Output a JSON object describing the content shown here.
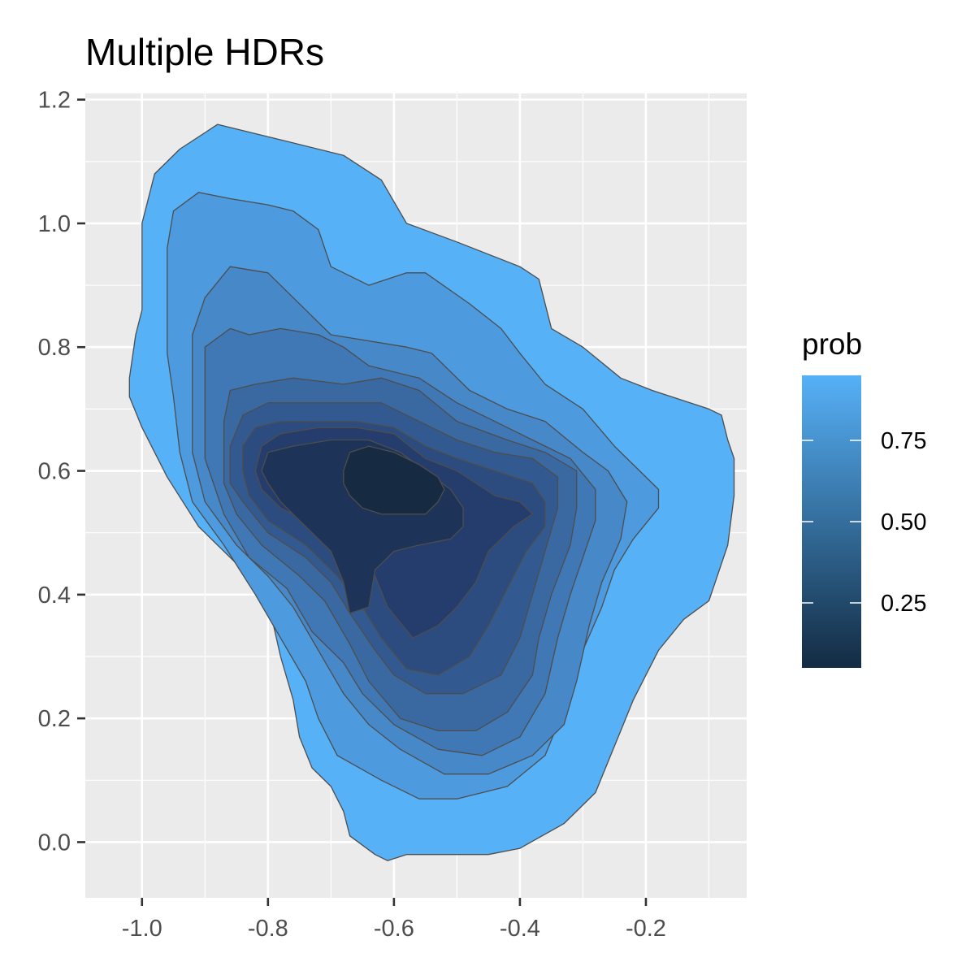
{
  "chart_data": {
    "type": "contour",
    "title": "Multiple HDRs",
    "xlabel": "",
    "ylabel": "",
    "xlim": [
      -1.09,
      -0.04
    ],
    "ylim": [
      -0.09,
      1.21
    ],
    "grid": true,
    "x_ticks": [
      -1.0,
      -0.8,
      -0.6,
      -0.4,
      -0.2
    ],
    "x_tick_labels": [
      "-1.0",
      "-0.8",
      "-0.6",
      "-0.4",
      "-0.2"
    ],
    "y_ticks": [
      0.0,
      0.2,
      0.4,
      0.6,
      0.8,
      1.0,
      1.2
    ],
    "y_tick_labels": [
      "0.0",
      "0.2",
      "0.4",
      "0.6",
      "0.8",
      "1.0",
      "1.2"
    ],
    "density_mode": {
      "x": -0.6,
      "y": 0.58
    },
    "legend": {
      "title": "prob",
      "placement": "right",
      "range": [
        0.05,
        0.95
      ],
      "color_low": "#132B43",
      "color_high": "#56B1F7",
      "breaks": [
        0.25,
        0.5,
        0.75
      ],
      "break_labels": [
        "0.25",
        "0.50",
        "0.75"
      ]
    },
    "series": [
      {
        "prob": 0.95,
        "color": "#56B1F7",
        "points": [
          [
            -1.02,
            0.75
          ],
          [
            -1.01,
            0.82
          ],
          [
            -1.0,
            0.86
          ],
          [
            -1.0,
            1.0
          ],
          [
            -0.98,
            1.08
          ],
          [
            -0.94,
            1.12
          ],
          [
            -0.88,
            1.16
          ],
          [
            -0.76,
            1.13
          ],
          [
            -0.68,
            1.11
          ],
          [
            -0.62,
            1.07
          ],
          [
            -0.58,
            1.0
          ],
          [
            -0.5,
            0.97
          ],
          [
            -0.4,
            0.93
          ],
          [
            -0.37,
            0.91
          ],
          [
            -0.35,
            0.83
          ],
          [
            -0.3,
            0.8
          ],
          [
            -0.24,
            0.75
          ],
          [
            -0.19,
            0.73
          ],
          [
            -0.1,
            0.7
          ],
          [
            -0.08,
            0.69
          ],
          [
            -0.07,
            0.65
          ],
          [
            -0.06,
            0.62
          ],
          [
            -0.06,
            0.56
          ],
          [
            -0.07,
            0.48
          ],
          [
            -0.1,
            0.39
          ],
          [
            -0.14,
            0.36
          ],
          [
            -0.18,
            0.31
          ],
          [
            -0.2,
            0.27
          ],
          [
            -0.22,
            0.23
          ],
          [
            -0.24,
            0.18
          ],
          [
            -0.26,
            0.13
          ],
          [
            -0.28,
            0.08
          ],
          [
            -0.33,
            0.03
          ],
          [
            -0.4,
            -0.01
          ],
          [
            -0.45,
            -0.02
          ],
          [
            -0.5,
            -0.02
          ],
          [
            -0.58,
            -0.02
          ],
          [
            -0.61,
            -0.03
          ],
          [
            -0.63,
            -0.02
          ],
          [
            -0.67,
            0.01
          ],
          [
            -0.68,
            0.05
          ],
          [
            -0.7,
            0.09
          ],
          [
            -0.73,
            0.12
          ],
          [
            -0.75,
            0.17
          ],
          [
            -0.76,
            0.23
          ],
          [
            -0.78,
            0.3
          ],
          [
            -0.8,
            0.39
          ],
          [
            -0.85,
            0.45
          ],
          [
            -0.91,
            0.51
          ],
          [
            -0.96,
            0.59
          ],
          [
            -1.0,
            0.67
          ],
          [
            -1.02,
            0.72
          ]
        ]
      },
      {
        "prob": 0.85,
        "color": "#4D9ADF",
        "points": [
          [
            -0.96,
            0.79
          ],
          [
            -0.96,
            0.96
          ],
          [
            -0.95,
            1.02
          ],
          [
            -0.91,
            1.05
          ],
          [
            -0.86,
            1.04
          ],
          [
            -0.8,
            1.03
          ],
          [
            -0.76,
            1.02
          ],
          [
            -0.72,
            0.99
          ],
          [
            -0.7,
            0.93
          ],
          [
            -0.64,
            0.9
          ],
          [
            -0.58,
            0.92
          ],
          [
            -0.55,
            0.92
          ],
          [
            -0.48,
            0.87
          ],
          [
            -0.43,
            0.83
          ],
          [
            -0.4,
            0.79
          ],
          [
            -0.36,
            0.74
          ],
          [
            -0.3,
            0.7
          ],
          [
            -0.25,
            0.64
          ],
          [
            -0.21,
            0.6
          ],
          [
            -0.18,
            0.57
          ],
          [
            -0.18,
            0.54
          ],
          [
            -0.22,
            0.49
          ],
          [
            -0.25,
            0.44
          ],
          [
            -0.27,
            0.38
          ],
          [
            -0.3,
            0.31
          ],
          [
            -0.32,
            0.24
          ],
          [
            -0.36,
            0.14
          ],
          [
            -0.42,
            0.09
          ],
          [
            -0.5,
            0.07
          ],
          [
            -0.56,
            0.07
          ],
          [
            -0.62,
            0.1
          ],
          [
            -0.69,
            0.14
          ],
          [
            -0.72,
            0.2
          ],
          [
            -0.74,
            0.26
          ],
          [
            -0.78,
            0.33
          ],
          [
            -0.82,
            0.4
          ],
          [
            -0.87,
            0.48
          ],
          [
            -0.92,
            0.55
          ],
          [
            -0.94,
            0.63
          ],
          [
            -0.95,
            0.72
          ]
        ]
      },
      {
        "prob": 0.75,
        "color": "#4788C9",
        "points": [
          [
            -0.92,
            0.63
          ],
          [
            -0.92,
            0.82
          ],
          [
            -0.9,
            0.88
          ],
          [
            -0.86,
            0.93
          ],
          [
            -0.8,
            0.92
          ],
          [
            -0.76,
            0.88
          ],
          [
            -0.7,
            0.82
          ],
          [
            -0.58,
            0.8
          ],
          [
            -0.54,
            0.79
          ],
          [
            -0.48,
            0.73
          ],
          [
            -0.42,
            0.7
          ],
          [
            -0.36,
            0.68
          ],
          [
            -0.3,
            0.63
          ],
          [
            -0.26,
            0.6
          ],
          [
            -0.23,
            0.55
          ],
          [
            -0.24,
            0.49
          ],
          [
            -0.27,
            0.42
          ],
          [
            -0.29,
            0.35
          ],
          [
            -0.31,
            0.26
          ],
          [
            -0.33,
            0.19
          ],
          [
            -0.38,
            0.14
          ],
          [
            -0.45,
            0.11
          ],
          [
            -0.52,
            0.11
          ],
          [
            -0.59,
            0.15
          ],
          [
            -0.64,
            0.19
          ],
          [
            -0.68,
            0.24
          ],
          [
            -0.72,
            0.31
          ],
          [
            -0.76,
            0.38
          ],
          [
            -0.8,
            0.43
          ],
          [
            -0.85,
            0.48
          ],
          [
            -0.9,
            0.55
          ]
        ]
      },
      {
        "prob": 0.65,
        "color": "#4078B5",
        "points": [
          [
            -0.9,
            0.62
          ],
          [
            -0.9,
            0.8
          ],
          [
            -0.86,
            0.83
          ],
          [
            -0.83,
            0.82
          ],
          [
            -0.78,
            0.83
          ],
          [
            -0.72,
            0.82
          ],
          [
            -0.68,
            0.8
          ],
          [
            -0.64,
            0.77
          ],
          [
            -0.56,
            0.75
          ],
          [
            -0.5,
            0.71
          ],
          [
            -0.44,
            0.68
          ],
          [
            -0.38,
            0.65
          ],
          [
            -0.32,
            0.62
          ],
          [
            -0.28,
            0.57
          ],
          [
            -0.28,
            0.52
          ],
          [
            -0.3,
            0.46
          ],
          [
            -0.32,
            0.4
          ],
          [
            -0.34,
            0.33
          ],
          [
            -0.36,
            0.24
          ],
          [
            -0.4,
            0.17
          ],
          [
            -0.46,
            0.14
          ],
          [
            -0.53,
            0.15
          ],
          [
            -0.6,
            0.19
          ],
          [
            -0.65,
            0.24
          ],
          [
            -0.68,
            0.29
          ],
          [
            -0.73,
            0.34
          ],
          [
            -0.77,
            0.41
          ],
          [
            -0.83,
            0.46
          ],
          [
            -0.87,
            0.53
          ]
        ]
      },
      {
        "prob": 0.55,
        "color": "#3A69A2",
        "points": [
          [
            -0.87,
            0.58
          ],
          [
            -0.87,
            0.68
          ],
          [
            -0.86,
            0.73
          ],
          [
            -0.82,
            0.74
          ],
          [
            -0.76,
            0.75
          ],
          [
            -0.68,
            0.74
          ],
          [
            -0.62,
            0.75
          ],
          [
            -0.56,
            0.73
          ],
          [
            -0.5,
            0.68
          ],
          [
            -0.42,
            0.65
          ],
          [
            -0.36,
            0.63
          ],
          [
            -0.31,
            0.6
          ],
          [
            -0.31,
            0.54
          ],
          [
            -0.32,
            0.48
          ],
          [
            -0.35,
            0.4
          ],
          [
            -0.37,
            0.33
          ],
          [
            -0.38,
            0.27
          ],
          [
            -0.42,
            0.21
          ],
          [
            -0.47,
            0.18
          ],
          [
            -0.53,
            0.18
          ],
          [
            -0.59,
            0.2
          ],
          [
            -0.64,
            0.26
          ],
          [
            -0.67,
            0.32
          ],
          [
            -0.71,
            0.39
          ],
          [
            -0.75,
            0.43
          ],
          [
            -0.81,
            0.48
          ],
          [
            -0.85,
            0.53
          ]
        ]
      },
      {
        "prob": 0.45,
        "color": "#335A90",
        "points": [
          [
            -0.86,
            0.58
          ],
          [
            -0.86,
            0.64
          ],
          [
            -0.84,
            0.69
          ],
          [
            -0.8,
            0.71
          ],
          [
            -0.75,
            0.71
          ],
          [
            -0.7,
            0.71
          ],
          [
            -0.62,
            0.71
          ],
          [
            -0.56,
            0.68
          ],
          [
            -0.5,
            0.65
          ],
          [
            -0.44,
            0.63
          ],
          [
            -0.38,
            0.62
          ],
          [
            -0.34,
            0.59
          ],
          [
            -0.34,
            0.54
          ],
          [
            -0.36,
            0.47
          ],
          [
            -0.38,
            0.4
          ],
          [
            -0.4,
            0.33
          ],
          [
            -0.43,
            0.27
          ],
          [
            -0.49,
            0.24
          ],
          [
            -0.55,
            0.24
          ],
          [
            -0.6,
            0.27
          ],
          [
            -0.63,
            0.31
          ],
          [
            -0.67,
            0.37
          ],
          [
            -0.7,
            0.42
          ],
          [
            -0.74,
            0.46
          ],
          [
            -0.8,
            0.5
          ],
          [
            -0.84,
            0.55
          ]
        ]
      },
      {
        "prob": 0.35,
        "color": "#2C4B7E",
        "points": [
          [
            -0.84,
            0.6
          ],
          [
            -0.84,
            0.64
          ],
          [
            -0.82,
            0.67
          ],
          [
            -0.78,
            0.68
          ],
          [
            -0.72,
            0.68
          ],
          [
            -0.66,
            0.68
          ],
          [
            -0.6,
            0.67
          ],
          [
            -0.55,
            0.64
          ],
          [
            -0.5,
            0.62
          ],
          [
            -0.44,
            0.6
          ],
          [
            -0.38,
            0.58
          ],
          [
            -0.36,
            0.55
          ],
          [
            -0.36,
            0.51
          ],
          [
            -0.39,
            0.47
          ],
          [
            -0.42,
            0.41
          ],
          [
            -0.45,
            0.35
          ],
          [
            -0.48,
            0.3
          ],
          [
            -0.53,
            0.27
          ],
          [
            -0.58,
            0.28
          ],
          [
            -0.62,
            0.33
          ],
          [
            -0.65,
            0.38
          ],
          [
            -0.69,
            0.43
          ],
          [
            -0.74,
            0.48
          ],
          [
            -0.8,
            0.52
          ],
          [
            -0.83,
            0.56
          ]
        ]
      },
      {
        "prob": 0.25,
        "color": "#253D6C",
        "points": [
          [
            -0.82,
            0.6
          ],
          [
            -0.81,
            0.64
          ],
          [
            -0.78,
            0.66
          ],
          [
            -0.72,
            0.67
          ],
          [
            -0.66,
            0.67
          ],
          [
            -0.6,
            0.66
          ],
          [
            -0.55,
            0.62
          ],
          [
            -0.5,
            0.6
          ],
          [
            -0.44,
            0.56
          ],
          [
            -0.4,
            0.55
          ],
          [
            -0.38,
            0.53
          ],
          [
            -0.41,
            0.51
          ],
          [
            -0.45,
            0.47
          ],
          [
            -0.47,
            0.42
          ],
          [
            -0.5,
            0.38
          ],
          [
            -0.53,
            0.35
          ],
          [
            -0.57,
            0.33
          ],
          [
            -0.61,
            0.38
          ],
          [
            -0.63,
            0.43
          ],
          [
            -0.67,
            0.48
          ],
          [
            -0.72,
            0.51
          ],
          [
            -0.78,
            0.54
          ],
          [
            -0.81,
            0.57
          ]
        ]
      },
      {
        "prob": 0.15,
        "color": "#1D3458",
        "points": [
          [
            -0.81,
            0.6
          ],
          [
            -0.8,
            0.63
          ],
          [
            -0.76,
            0.64
          ],
          [
            -0.7,
            0.65
          ],
          [
            -0.64,
            0.65
          ],
          [
            -0.59,
            0.63
          ],
          [
            -0.55,
            0.6
          ],
          [
            -0.51,
            0.57
          ],
          [
            -0.49,
            0.54
          ],
          [
            -0.49,
            0.51
          ],
          [
            -0.51,
            0.49
          ],
          [
            -0.56,
            0.48
          ],
          [
            -0.6,
            0.47
          ],
          [
            -0.63,
            0.44
          ],
          [
            -0.64,
            0.38
          ],
          [
            -0.67,
            0.37
          ],
          [
            -0.68,
            0.42
          ],
          [
            -0.7,
            0.47
          ],
          [
            -0.74,
            0.51
          ],
          [
            -0.78,
            0.55
          ],
          [
            -0.8,
            0.58
          ]
        ]
      },
      {
        "prob": 0.05,
        "color": "#162A42",
        "points": [
          [
            -0.68,
            0.6
          ],
          [
            -0.67,
            0.63
          ],
          [
            -0.64,
            0.64
          ],
          [
            -0.6,
            0.63
          ],
          [
            -0.56,
            0.61
          ],
          [
            -0.53,
            0.59
          ],
          [
            -0.52,
            0.57
          ],
          [
            -0.53,
            0.55
          ],
          [
            -0.55,
            0.53
          ],
          [
            -0.58,
            0.53
          ],
          [
            -0.62,
            0.53
          ],
          [
            -0.65,
            0.54
          ],
          [
            -0.67,
            0.56
          ],
          [
            -0.68,
            0.58
          ]
        ]
      }
    ]
  }
}
